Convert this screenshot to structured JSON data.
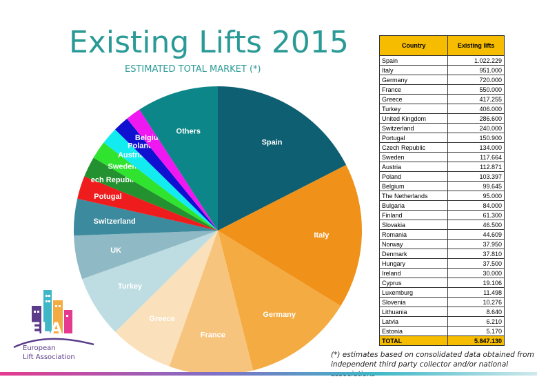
{
  "title": "Existing Lifts 2015",
  "subtitle": "ESTIMATED TOTAL MARKET (*)",
  "table": {
    "col_country": "Country",
    "col_lifts": "Existing lifts",
    "rows": [
      [
        "Spain",
        "1.022.229"
      ],
      [
        "Italy",
        "951.000"
      ],
      [
        "Germany",
        "720.000"
      ],
      [
        "France",
        "550.000"
      ],
      [
        "Greece",
        "417.255"
      ],
      [
        "Turkey",
        "406.000"
      ],
      [
        "United Kingdom",
        "286.600"
      ],
      [
        "Switzerland",
        "240.000"
      ],
      [
        "Portugal",
        "150.900"
      ],
      [
        "Czech Republic",
        "134.000"
      ],
      [
        "Sweden",
        "117.664"
      ],
      [
        "Austria",
        "112.871"
      ],
      [
        "Poland",
        "103.397"
      ],
      [
        "Belgium",
        "99.645"
      ],
      [
        "The Netherlands",
        "95.000"
      ],
      [
        "Bulgaria",
        "84.000"
      ],
      [
        "Finland",
        "61.300"
      ],
      [
        "Slovakia",
        "46.500"
      ],
      [
        "Romania",
        "44.609"
      ],
      [
        "Norway",
        "37.950"
      ],
      [
        "Denmark",
        "37.810"
      ],
      [
        "Hungary",
        "37.500"
      ],
      [
        "Ireland",
        "30.000"
      ],
      [
        "Cyprus",
        "19.106"
      ],
      [
        "Luxemburg",
        "11.498"
      ],
      [
        "Slovenia",
        "10.276"
      ],
      [
        "Lithuania",
        "8.640"
      ],
      [
        "Latvia",
        "6.210"
      ],
      [
        "Estonia",
        "5.170"
      ]
    ],
    "total_label": "TOTAL",
    "total_value": "5.847.130"
  },
  "note_line1": "(*) estimates based on consolidated data  obtained from",
  "note_line2": "independent third party collector and/or national associations",
  "logo": {
    "mark": "ELA",
    "line1": "European",
    "line2": "Lift Association"
  },
  "chart_data": {
    "type": "pie",
    "title": "Existing Lifts 2015",
    "subtitle": "ESTIMATED TOTAL MARKET (*)",
    "slices": [
      {
        "label": "Spain",
        "value": 1022229,
        "color": "#0f5f73"
      },
      {
        "label": "Italy",
        "value": 951000,
        "color": "#f0921a"
      },
      {
        "label": "Germany",
        "value": 720000,
        "color": "#f4ab42"
      },
      {
        "label": "France",
        "value": 550000,
        "color": "#f7c47e"
      },
      {
        "label": "Greece",
        "value": 417255,
        "color": "#fae0bb"
      },
      {
        "label": "Turkey",
        "value": 406000,
        "color": "#bedde2"
      },
      {
        "label": "UK",
        "value": 286600,
        "color": "#8fb9c4"
      },
      {
        "label": "Switzerland",
        "value": 240000,
        "color": "#3c8a9e"
      },
      {
        "label": "Potugal",
        "value": 150900,
        "color": "#ee1c1c"
      },
      {
        "label": "Czech Republic",
        "value": 134000,
        "color": "#23912f"
      },
      {
        "label": "Sweden",
        "value": 117664,
        "color": "#2fe32f"
      },
      {
        "label": "Austria",
        "value": 112871,
        "color": "#12ecf0"
      },
      {
        "label": "Poland",
        "value": 103397,
        "color": "#1010d0"
      },
      {
        "label": "Belgium",
        "value": 99645,
        "color": "#f018f0"
      },
      {
        "label": "Others",
        "value": 535570,
        "color": "#0c8688"
      }
    ],
    "label_text": [
      "Spain",
      "Italy",
      "Germany",
      "France",
      "Greece",
      "Turkey",
      "UK",
      "Switzerland",
      "Potugal",
      "ech Republic",
      "Sweden",
      "Austria",
      "Poland",
      "Belgium",
      "Others"
    ]
  }
}
